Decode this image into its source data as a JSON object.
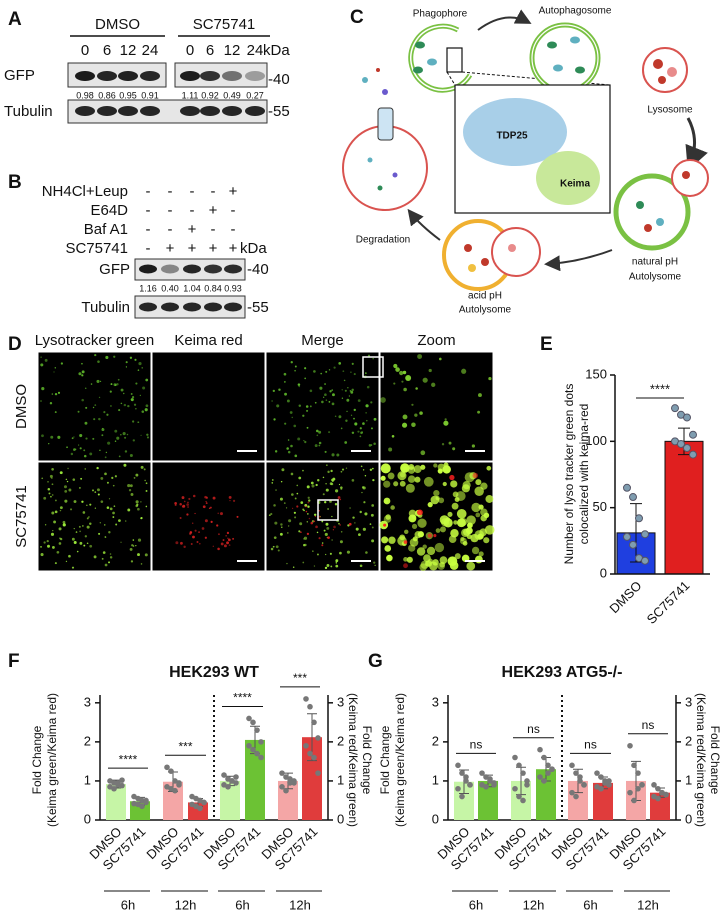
{
  "panel_labels": [
    "A",
    "B",
    "C",
    "D",
    "E",
    "F",
    "G"
  ],
  "blot_a": {
    "groups": [
      "DMSO",
      "SC75741"
    ],
    "times": [
      [
        "0",
        "6",
        "12",
        "24"
      ],
      [
        "0",
        "6",
        "12",
        "24"
      ]
    ],
    "kda": "kDa",
    "proteins": [
      "GFP",
      "Tubulin"
    ],
    "markers": [
      "-40",
      "-55"
    ],
    "ratios": [
      "0.98",
      "0.86",
      "0.95",
      "0.91",
      "1.11",
      "0.92",
      "0.49",
      "0.27"
    ]
  },
  "blot_b": {
    "treatments": [
      {
        "label": "NH4Cl+Leup",
        "signs": [
          "-",
          "-",
          "-",
          "-",
          "+"
        ]
      },
      {
        "label": "E64D",
        "signs": [
          "-",
          "-",
          "-",
          "+",
          "-"
        ]
      },
      {
        "label": "Baf A1",
        "signs": [
          "-",
          "-",
          "+",
          "-",
          "-"
        ]
      },
      {
        "label": "SC75741",
        "signs": [
          "-",
          "+",
          "+",
          "+",
          "+"
        ]
      }
    ],
    "kda": "kDa",
    "proteins": [
      "GFP",
      "Tubulin"
    ],
    "markers": [
      "-40",
      "-55"
    ],
    "ratios": [
      "1.16",
      "0.40",
      "1.04",
      "0.84",
      "0.93"
    ]
  },
  "schematic": {
    "phagophore": "Phagophore",
    "autophagosome": "Autophagosome",
    "lysosome": "Lysosome",
    "tdp25": "TDP25",
    "keima": "Keima",
    "natural_ph": "natural pH",
    "autolysome_natural": "Autolysome",
    "acid_ph": "acid pH",
    "autolysome_acid": "Autolysome",
    "degradation": "Degradation"
  },
  "microscopy": {
    "channels": [
      "Lysotracker green",
      "Keima red",
      "Merge",
      "Zoom"
    ],
    "conditions": [
      "DMSO",
      "SC75741"
    ]
  },
  "chart_data": [
    {
      "type": "bar",
      "y_label": [
        "Number of lyso tracker green dots",
        "colocalized with keima-red"
      ],
      "categories": [
        "DMSO",
        "SC75741"
      ],
      "values": [
        31,
        100
      ],
      "errors": [
        22,
        10
      ],
      "colors": [
        "#1f3fe0",
        "#e01f1f"
      ],
      "points": [
        [
          65,
          58,
          42,
          30,
          28,
          22,
          12,
          10
        ],
        [
          125,
          120,
          118,
          105,
          100,
          98,
          95,
          90
        ]
      ],
      "ylim": [
        0,
        150
      ],
      "yticks": [
        0,
        50,
        100,
        150
      ],
      "significance": "****"
    },
    {
      "type": "dualbar",
      "title": "HEK293 WT",
      "y_label": [
        "Fold Change",
        "(Keima green/Keima red)"
      ],
      "y2_label": [
        "(Keima red/Keima green)",
        "Fold Change"
      ],
      "categories": [
        "DMSO",
        "SC75741",
        "DMSO",
        "SC75741",
        "DMSO",
        "SC75741",
        "DMSO",
        "SC75741"
      ],
      "groups": [
        "6h",
        "12h",
        "6h",
        "12h"
      ],
      "values": [
        0.92,
        0.48,
        0.98,
        0.45,
        1.0,
        2.05,
        1.0,
        2.12
      ],
      "errors": [
        0.1,
        0.1,
        0.25,
        0.1,
        0.12,
        0.35,
        0.2,
        0.6
      ],
      "colors": [
        "#c6f5a6",
        "#6cc234",
        "#f4a6a6",
        "#e03c3c",
        "#c6f5a6",
        "#6cc234",
        "#f4a6a6",
        "#e03c3c"
      ],
      "axis": [
        "y",
        "y",
        "y",
        "y",
        "y2",
        "y2",
        "y2",
        "y2"
      ],
      "points": [
        [
          1.0,
          0.95,
          0.9,
          0.88,
          0.85,
          0.8,
          0.95,
          1.02
        ],
        [
          0.6,
          0.55,
          0.5,
          0.45,
          0.42,
          0.4,
          0.35,
          0.5
        ],
        [
          1.35,
          1.25,
          1.0,
          0.9,
          0.85,
          0.8,
          0.75,
          0.95
        ],
        [
          0.6,
          0.55,
          0.5,
          0.45,
          0.4,
          0.35,
          0.3,
          0.45
        ],
        [
          1.15,
          1.05,
          1.0,
          0.95,
          0.9,
          0.85,
          1.0,
          1.1
        ],
        [
          2.6,
          2.5,
          2.3,
          2.0,
          1.9,
          1.8,
          1.7,
          1.6
        ],
        [
          1.2,
          1.1,
          1.05,
          0.95,
          0.85,
          0.75,
          0.95,
          1.0
        ],
        [
          3.1,
          2.9,
          2.5,
          2.1,
          1.9,
          1.7,
          1.6,
          1.2
        ]
      ],
      "ylim": [
        0,
        3.2
      ],
      "yticks": [
        0,
        1,
        2,
        3
      ],
      "y2lim": [
        0,
        3.2
      ],
      "y2ticks": [
        0,
        1,
        2,
        3
      ],
      "significance": [
        "****",
        "***",
        "****",
        "***"
      ]
    },
    {
      "type": "dualbar",
      "title": "HEK293 ATG5-/-",
      "y_label": [
        "Fold Change",
        "(Keima green/Keima red)"
      ],
      "y2_label": [
        "(Keima red/Keima green)",
        "Fold Change"
      ],
      "categories": [
        "DMSO",
        "SC75741",
        "DMSO",
        "SC75741",
        "DMSO",
        "SC75741",
        "DMSO",
        "SC75741"
      ],
      "groups": [
        "6h",
        "12h",
        "6h",
        "12h"
      ],
      "values": [
        0.98,
        1.0,
        1.0,
        1.3,
        1.0,
        0.95,
        1.0,
        0.7
      ],
      "errors": [
        0.3,
        0.15,
        0.35,
        0.3,
        0.3,
        0.15,
        0.5,
        0.12
      ],
      "colors": [
        "#c6f5a6",
        "#6cc234",
        "#c6f5a6",
        "#6cc234",
        "#f4a6a6",
        "#e03c3c",
        "#f4a6a6",
        "#e03c3c"
      ],
      "axis": [
        "y",
        "y",
        "y",
        "y",
        "y2",
        "y2",
        "y2",
        "y2"
      ],
      "points": [
        [
          1.4,
          1.2,
          1.0,
          0.9,
          0.8,
          0.6,
          1.1,
          0.9
        ],
        [
          1.2,
          1.1,
          1.0,
          0.95,
          0.9,
          0.85,
          1.05,
          0.9
        ],
        [
          1.6,
          1.4,
          1.2,
          1.0,
          0.8,
          0.6,
          0.5,
          0.9
        ],
        [
          1.8,
          1.6,
          1.4,
          1.3,
          1.1,
          1.0,
          1.2,
          1.3
        ],
        [
          1.4,
          1.2,
          1.0,
          0.9,
          0.7,
          0.6,
          1.1,
          0.9
        ],
        [
          1.2,
          1.1,
          1.0,
          0.9,
          0.85,
          0.8,
          0.95,
          1.0
        ],
        [
          1.9,
          1.4,
          1.2,
          0.9,
          0.7,
          0.5,
          0.8,
          0.9
        ],
        [
          0.9,
          0.8,
          0.7,
          0.65,
          0.6,
          0.55,
          0.7,
          0.65
        ]
      ],
      "ylim": [
        0,
        3.2
      ],
      "yticks": [
        0,
        1,
        2,
        3
      ],
      "y2lim": [
        0,
        3.2
      ],
      "y2ticks": [
        0,
        1,
        2,
        3
      ],
      "significance": [
        "ns",
        "ns",
        "ns",
        "ns"
      ]
    }
  ]
}
